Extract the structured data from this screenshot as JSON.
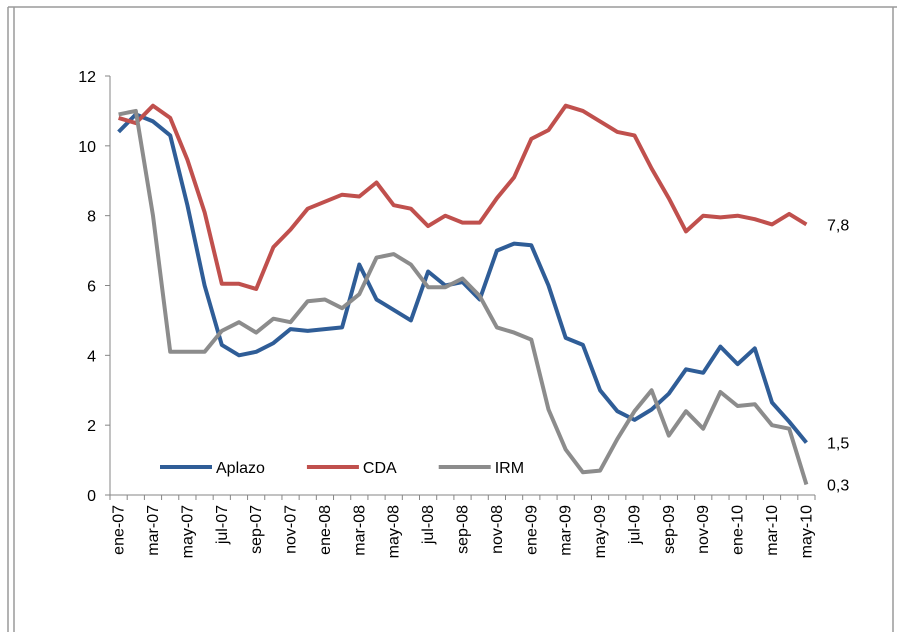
{
  "chart_data": {
    "type": "line",
    "categories": [
      "ene-07",
      null,
      "mar-07",
      null,
      "may-07",
      null,
      "jul-07",
      null,
      "sep-07",
      null,
      "nov-07",
      null,
      "ene-08",
      null,
      "mar-08",
      null,
      "may-08",
      null,
      "jul-08",
      null,
      "sep-08",
      null,
      "nov-08",
      null,
      "ene-09",
      null,
      "mar-09",
      null,
      "may-09",
      null,
      "jul-09",
      null,
      "sep-09",
      null,
      "nov-09",
      null,
      "ene-10",
      null,
      "mar-10",
      null,
      "may-10"
    ],
    "series": [
      {
        "name": "Aplazo",
        "color": "#2f5d97",
        "end_label": "1,5",
        "values": [
          10.4,
          10.9,
          10.7,
          10.3,
          8.3,
          6.0,
          4.3,
          4.0,
          4.1,
          4.35,
          4.75,
          4.7,
          4.75,
          4.8,
          6.6,
          5.6,
          5.3,
          5.0,
          6.4,
          6.0,
          6.1,
          5.6,
          7.0,
          7.2,
          7.15,
          6.0,
          4.5,
          4.3,
          3.0,
          2.4,
          2.15,
          2.45,
          2.9,
          3.6,
          3.5,
          4.25,
          3.75,
          4.2,
          2.65,
          2.1,
          1.5
        ]
      },
      {
        "name": "CDA",
        "color": "#c0504d",
        "end_label": "7,8",
        "values": [
          10.8,
          10.65,
          11.15,
          10.8,
          9.6,
          8.1,
          6.05,
          6.05,
          5.9,
          7.1,
          7.6,
          8.2,
          8.4,
          8.6,
          8.55,
          8.95,
          8.3,
          8.2,
          7.7,
          8.0,
          7.8,
          7.8,
          8.5,
          9.1,
          10.2,
          10.45,
          11.15,
          11.0,
          10.7,
          10.4,
          10.3,
          9.35,
          8.5,
          7.55,
          8.0,
          7.95,
          8.0,
          7.9,
          7.75,
          8.05,
          7.75
        ]
      },
      {
        "name": "IRM",
        "color": "#8c8c8c",
        "end_label": "0,3",
        "values": [
          10.9,
          11.0,
          8.0,
          4.1,
          4.1,
          4.1,
          4.7,
          4.95,
          4.65,
          5.05,
          4.95,
          5.55,
          5.6,
          5.35,
          5.75,
          6.8,
          6.9,
          6.6,
          5.95,
          5.95,
          6.2,
          5.7,
          4.8,
          4.65,
          4.45,
          2.45,
          1.3,
          0.65,
          0.7,
          1.6,
          2.4,
          3.0,
          1.7,
          2.4,
          1.9,
          2.95,
          2.55,
          2.6,
          2.0,
          1.9,
          0.3
        ]
      }
    ],
    "ylim": [
      0,
      12
    ],
    "yticks": [
      0,
      2,
      4,
      6,
      8,
      10,
      12
    ],
    "grid": false,
    "legend": "lower-left"
  }
}
